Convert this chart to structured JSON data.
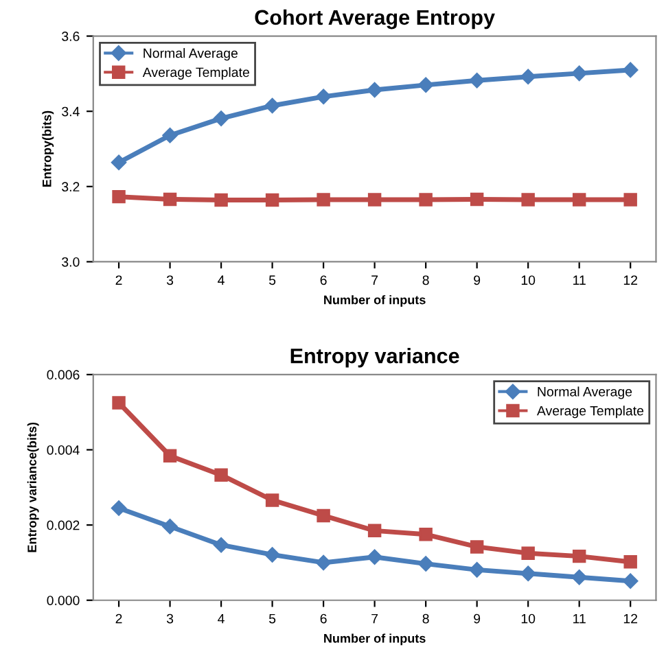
{
  "chart_data": [
    {
      "type": "line",
      "title": "Cohort Average Entropy",
      "xlabel": "Number of inputs",
      "ylabel": "Entropy(bits)",
      "categories": [
        "2",
        "3",
        "4",
        "5",
        "6",
        "7",
        "8",
        "9",
        "10",
        "11",
        "12"
      ],
      "series": [
        {
          "name": "Normal Average",
          "color": "#4a7ebb",
          "marker": "diamond",
          "values": [
            3.264,
            3.336,
            3.381,
            3.415,
            3.439,
            3.457,
            3.47,
            3.482,
            3.492,
            3.501,
            3.51
          ]
        },
        {
          "name": "Average Template",
          "color": "#be4b48",
          "marker": "square",
          "values": [
            3.173,
            3.166,
            3.164,
            3.164,
            3.165,
            3.165,
            3.165,
            3.166,
            3.165,
            3.165,
            3.165
          ]
        }
      ],
      "ylim": [
        3.0,
        3.6
      ],
      "yticks": [
        {
          "value": 3.0,
          "label": "3.0"
        },
        {
          "value": 3.2,
          "label": "3.2"
        },
        {
          "value": 3.4,
          "label": "3.4"
        },
        {
          "value": 3.6,
          "label": "3.6"
        }
      ],
      "grid": false,
      "legend": "top left",
      "line_style": "solid"
    },
    {
      "type": "line",
      "title": "Entropy variance",
      "xlabel": "Number of inputs",
      "ylabel": "Entropy variance(bits)",
      "categories": [
        "2",
        "3",
        "4",
        "5",
        "6",
        "7",
        "8",
        "9",
        "10",
        "11",
        "12"
      ],
      "series": [
        {
          "name": "Normal Average",
          "color": "#4a7ebb",
          "marker": "diamond",
          "values": [
            0.00245,
            0.00196,
            0.00147,
            0.00121,
            0.001,
            0.00115,
            0.00097,
            0.00081,
            0.00071,
            0.00061,
            0.00051
          ]
        },
        {
          "name": "Average Template",
          "color": "#be4b48",
          "marker": "square",
          "values": [
            0.00525,
            0.00384,
            0.00333,
            0.00266,
            0.00225,
            0.00185,
            0.00175,
            0.00142,
            0.00125,
            0.00117,
            0.00102
          ]
        }
      ],
      "ylim": [
        0.0,
        0.006
      ],
      "yticks": [
        {
          "value": 0.0,
          "label": "0.000"
        },
        {
          "value": 0.002,
          "label": "0.002"
        },
        {
          "value": 0.004,
          "label": "0.004"
        },
        {
          "value": 0.006,
          "label": "0.006"
        }
      ],
      "grid": false,
      "legend": "top right",
      "line_style": "solid"
    }
  ]
}
